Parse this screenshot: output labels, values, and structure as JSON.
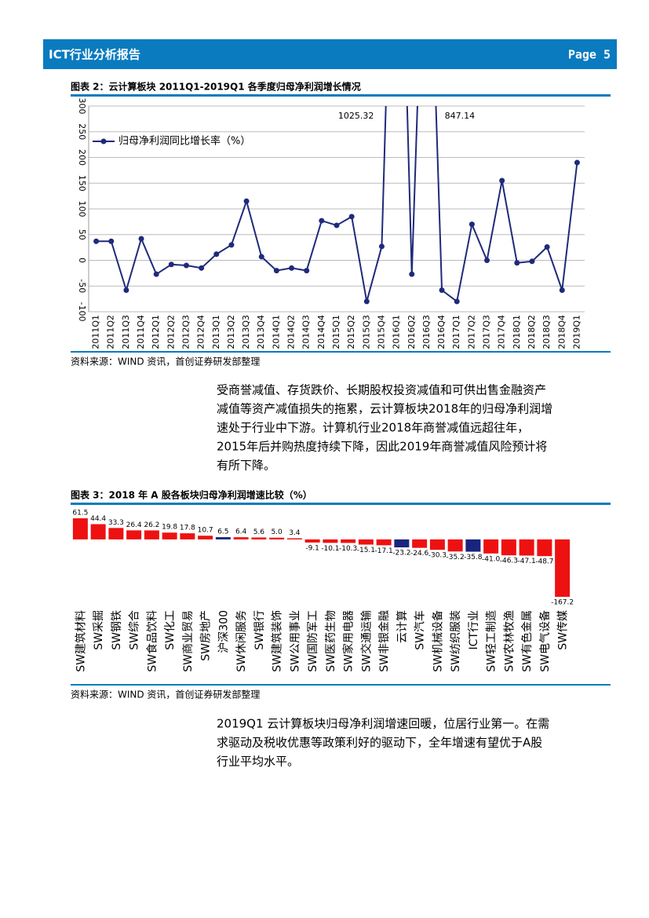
{
  "header": {
    "title": "ICT行业分析报告",
    "page": "Page 5"
  },
  "chart_data": [
    {
      "type": "line",
      "title": "图表 2：云计算板块 2011Q1-2019Q1 各季度归母净利润增长情况",
      "source": "资料来源：WIND 资讯，首创证券研发部整理",
      "categories": [
        "2011Q1",
        "2011Q2",
        "2011Q3",
        "2011Q4",
        "2012Q1",
        "2012Q2",
        "2012Q3",
        "2012Q4",
        "2013Q1",
        "2013Q2",
        "2013Q3",
        "2013Q4",
        "2014Q1",
        "2014Q2",
        "2014Q3",
        "2014Q4",
        "2015Q1",
        "2015Q2",
        "2015Q3",
        "2015Q4",
        "2016Q1",
        "2016Q2",
        "2016Q3",
        "2016Q4",
        "2017Q1",
        "2017Q2",
        "2017Q3",
        "2017Q4",
        "2018Q1",
        "2018Q2",
        "2018Q3",
        "2018Q4",
        "2019Q1"
      ],
      "series": [
        {
          "name": "归母净利润同比增长率（%）",
          "color": "#1f2a7a",
          "values": [
            37,
            37,
            -58,
            42,
            -27,
            -8,
            -10,
            -15,
            12,
            30,
            115,
            7,
            -20,
            -15,
            -20,
            77,
            68,
            85,
            -80,
            27,
            1025.32,
            -27,
            847.14,
            -58,
            -80,
            70,
            0,
            155,
            -5,
            -2,
            26,
            -58,
            190
          ],
          "value_labels": [
            null,
            null,
            null,
            null,
            null,
            null,
            null,
            null,
            null,
            null,
            null,
            null,
            null,
            null,
            null,
            null,
            null,
            null,
            null,
            null,
            "1025.32",
            null,
            "847.14",
            null,
            null,
            null,
            null,
            null,
            null,
            null,
            null,
            null,
            null
          ]
        }
      ],
      "ylim": [
        -100,
        300
      ],
      "yticks": [
        -100,
        -50,
        0,
        50,
        100,
        150,
        200,
        250,
        300
      ],
      "grid": true,
      "legend": "upper left"
    },
    {
      "type": "bar",
      "title": "图表 3：2018 年 A 股各板块归母净利润增速比较（%）",
      "source": "资料来源：WIND 资讯，首创证券研发部整理",
      "categories": [
        "SW建筑材料",
        "SW采掘",
        "SW钢铁",
        "SW综合",
        "SW食品饮料",
        "SW化工",
        "SW商业贸易",
        "SW房地产",
        "沪深300",
        "SW休闲服务",
        "SW银行",
        "SW建筑装饰",
        "SW公用事业",
        "SW国防军工",
        "SW医药生物",
        "SW家用电器",
        "SW交通运输",
        "SW非银金融",
        "云计算",
        "SW汽车",
        "SW机械设备",
        "SW纺织服装",
        "ICT行业",
        "SW轻工制造",
        "SW农林牧渔",
        "SW有色金属",
        "SW电气设备",
        "SW传媒"
      ],
      "values": [
        61.5,
        44.4,
        33.3,
        26.4,
        26.2,
        19.8,
        17.8,
        10.7,
        6.5,
        6.4,
        5.6,
        5,
        3.4,
        -9.1,
        -10.1,
        -10.3,
        -15.1,
        -17.1,
        -23.2,
        -24.6,
        -30.3,
        -35.2,
        -35.8,
        -41,
        -46.3,
        -47.1,
        -48.7,
        -167.2
      ],
      "value_labels": [
        "61.5",
        "44.4",
        "33.3",
        "26.4",
        "26.2",
        "19.8",
        "17.8",
        "10.7",
        "6.5",
        "6.4",
        "5.6",
        "5.0",
        "3.4",
        "-9.1",
        "-10.1",
        "-10.3",
        "-15.1",
        "-17.1",
        "-23.2",
        "-24.6",
        "-30.3",
        "-35.2",
        "-35.8",
        "-41.0",
        "-46.3",
        "-47.1",
        "-48.7",
        "-167.2"
      ],
      "colors": [
        "#ee1111",
        "#ee1111",
        "#ee1111",
        "#ee1111",
        "#ee1111",
        "#ee1111",
        "#ee1111",
        "#ee1111",
        "#1a237e",
        "#ee1111",
        "#ee1111",
        "#ee1111",
        "#ee1111",
        "#ee1111",
        "#ee1111",
        "#ee1111",
        "#ee1111",
        "#ee1111",
        "#1a237e",
        "#ee1111",
        "#ee1111",
        "#ee1111",
        "#1a237e",
        "#ee1111",
        "#ee1111",
        "#ee1111",
        "#ee1111",
        "#ee1111"
      ]
    }
  ],
  "paragraphs": [
    [
      "受商誉减值、存货跌价、长期股权投资减值和可供出售金融资产",
      "减值等资产减值损失的拖累，云计算板块2018年的归母净利润增",
      "速处于行业中下游。计算机行业2018年商誉减值远超往年，",
      "2015年后并购热度持续下降，因此2019年商誉减值风险预计将",
      "有所下降。"
    ],
    [
      "2019Q1 云计算板块归母净利润增速回暖，位居行业第一。在需",
      "求驱动及税收优惠等政策利好的驱动下，全年增速有望优于A股",
      "行业平均水平。"
    ]
  ]
}
